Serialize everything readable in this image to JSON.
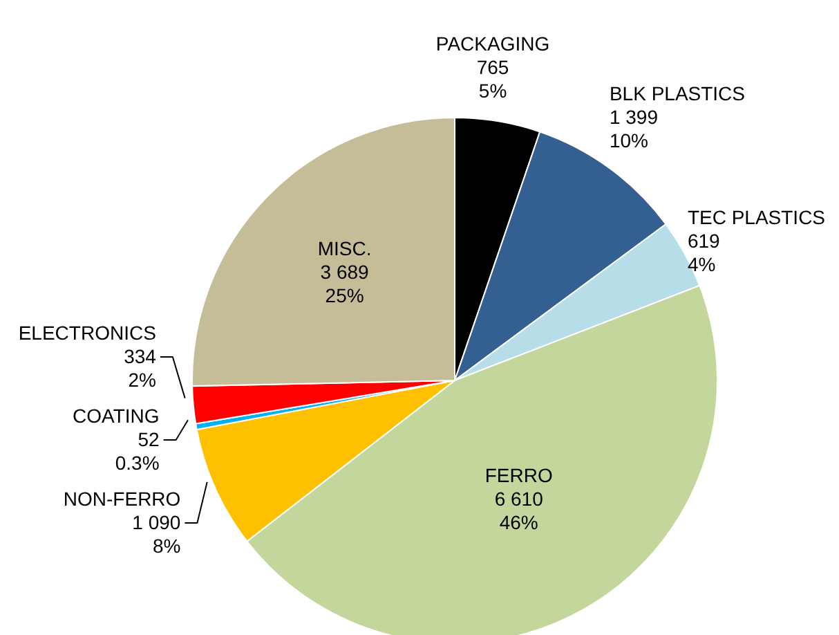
{
  "chart_data": {
    "type": "pie",
    "categories": [
      "PACKAGING",
      "BLK PLASTICS",
      "TEC PLASTICS",
      "FERRO",
      "NON-FERRO",
      "COATING",
      "ELECTRONICS",
      "MISC."
    ],
    "values": [
      765,
      1399,
      619,
      6610,
      1090,
      52,
      334,
      3689
    ],
    "colors": [
      "#000000",
      "#335f91",
      "#b7dde8",
      "#c3d69b",
      "#ffc000",
      "#00b0f0",
      "#ff0000",
      "#c4bd97"
    ],
    "value_labels": [
      "765",
      "1 399",
      "619",
      "6 610",
      "1 090",
      "52",
      "334",
      "3 689"
    ],
    "annotations": [
      {
        "text": "5%",
        "x": "PACKAGING"
      },
      {
        "text": "10%",
        "x": "BLK PLASTICS"
      },
      {
        "text": "4%",
        "x": "TEC PLASTICS"
      },
      {
        "text": "46%",
        "x": "FERRO"
      },
      {
        "text": "8%",
        "x": "NON-FERRO"
      },
      {
        "text": "0.3%",
        "x": "COATING"
      },
      {
        "text": "2%",
        "x": "ELECTRONICS"
      },
      {
        "text": "25%",
        "x": "MISC."
      }
    ]
  }
}
